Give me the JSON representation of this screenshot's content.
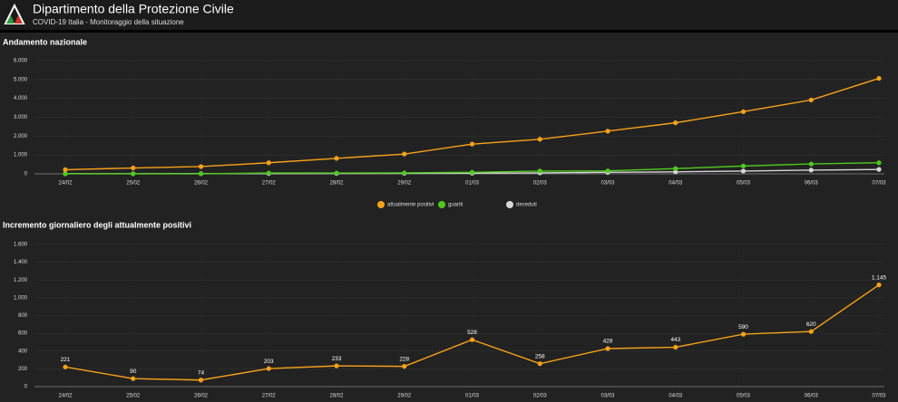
{
  "header": {
    "title": "Dipartimento della Protezione Civile",
    "subtitle": "COVID-19 Italia - Monitoraggio della situazione"
  },
  "chart_data": [
    {
      "type": "line",
      "title": "Andamento nazionale",
      "categories": [
        "24/02",
        "25/02",
        "26/02",
        "27/02",
        "28/02",
        "29/02",
        "01/03",
        "02/03",
        "03/03",
        "04/03",
        "05/03",
        "06/03",
        "07/03"
      ],
      "series": [
        {
          "name": "attualmente positivi",
          "color": "#f7a21b",
          "values": [
            221,
            311,
            385,
            588,
            821,
            1049,
            1577,
            1835,
            2263,
            2706,
            3296,
            3916,
            5061
          ]
        },
        {
          "name": "guariti",
          "color": "#4ec91e",
          "values": [
            1,
            1,
            3,
            45,
            46,
            50,
            83,
            149,
            160,
            276,
            414,
            523,
            589
          ]
        },
        {
          "name": "deceduti",
          "color": "#d8d8d8",
          "values": [
            7,
            10,
            12,
            17,
            21,
            29,
            34,
            52,
            79,
            107,
            148,
            197,
            233
          ]
        }
      ],
      "ylim": [
        0,
        6000
      ],
      "yticks": [
        0,
        {
          "value": 1000,
          "label": "1.000"
        },
        {
          "value": 2000,
          "label": "2.000"
        },
        {
          "value": 3000,
          "label": "3.000"
        },
        {
          "value": 4000,
          "label": "4.000"
        },
        {
          "value": 5000,
          "label": "5.000"
        },
        {
          "value": 6000,
          "label": "6.000"
        }
      ],
      "grid": true,
      "legend": "bottom"
    },
    {
      "type": "line",
      "title": "Incremento giornaliero degli attualmente positivi",
      "categories": [
        "24/02",
        "25/02",
        "26/02",
        "27/02",
        "28/02",
        "29/02",
        "01/03",
        "02/03",
        "03/03",
        "04/03",
        "05/03",
        "06/03",
        "07/03"
      ],
      "series": [
        {
          "color": "#f7a21b",
          "values": [
            221,
            90,
            74,
            203,
            233,
            228,
            528,
            258,
            428,
            443,
            590,
            620,
            1145
          ],
          "value_labels": [
            "221",
            "90",
            "74",
            "203",
            "233",
            "228",
            "528",
            "258",
            "428",
            "443",
            "590",
            "620",
            "1.145"
          ]
        }
      ],
      "ylim": [
        0,
        1600
      ],
      "yticks": [
        0,
        200,
        400,
        600,
        800,
        {
          "value": 1000,
          "label": "1.000"
        },
        {
          "value": 1200,
          "label": "1.200"
        },
        {
          "value": 1400,
          "label": "1.400"
        },
        {
          "value": 1600,
          "label": "1.600"
        }
      ],
      "grid": true
    }
  ]
}
